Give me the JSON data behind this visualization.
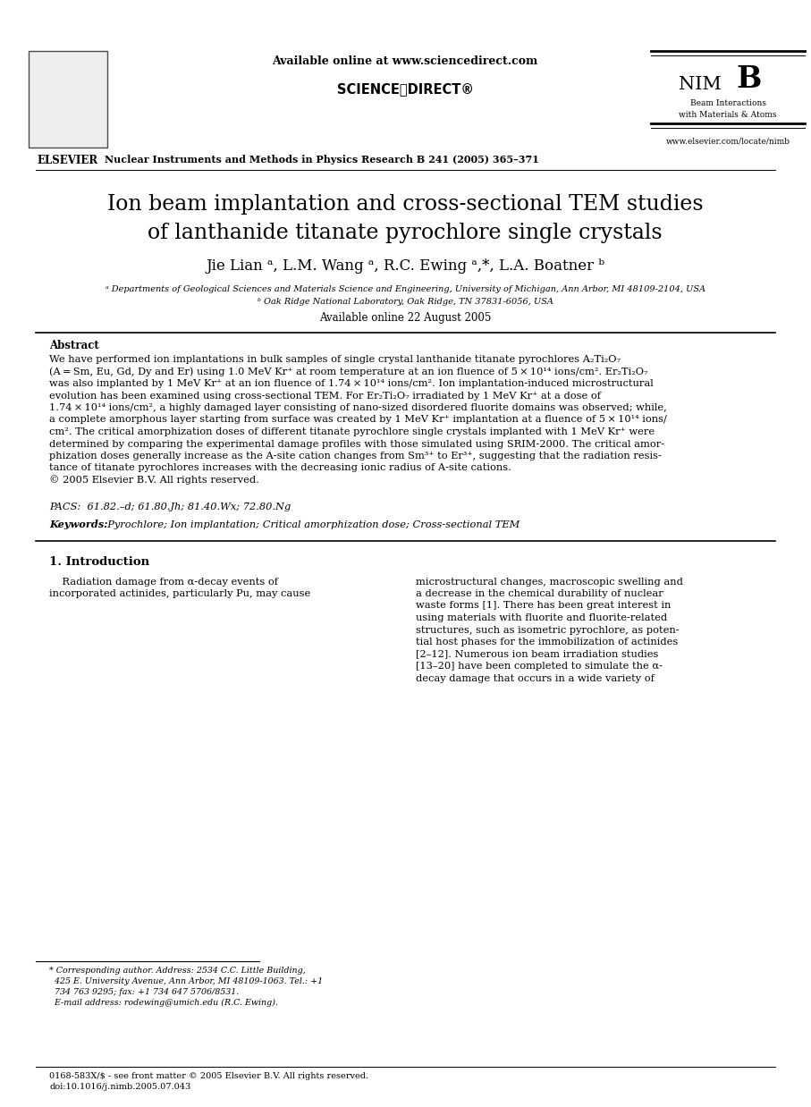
{
  "bg_color": "#ffffff",
  "header_available_online": "Available online at www.sciencedirect.com",
  "journal_name": "Nuclear Instruments and Methods in Physics Research B 241 (2005) 365–371",
  "journal_url": "www.elsevier.com/locate/nimb",
  "nimb_subtitle": "Beam Interactions\nwith Materials & Atoms",
  "title_line1": "Ion beam implantation and cross-sectional TEM studies",
  "title_line2": "of lanthanide titanate pyrochlore single crystals",
  "authors": "Jie Lian ᵃ, L.M. Wang ᵃ, R.C. Ewing ᵃ,*, L.A. Boatner ᵇ",
  "affil_a": "ᵃ Departments of Geological Sciences and Materials Science and Engineering, University of Michigan, Ann Arbor, MI 48109-2104, USA",
  "affil_b": "ᵇ Oak Ridge National Laboratory, Oak Ridge, TN 37831-6056, USA",
  "available_online": "Available online 22 August 2005",
  "abstract_label": "Abstract",
  "pacs": "PACS:  61.82.–d; 61.80.Jh; 81.40.Wx; 72.80.Ng",
  "keywords_label": "Keywords:",
  "keywords_text": "  Pyrochlore; Ion implantation; Critical amorphization dose; Cross-sectional TEM",
  "section1_title": "1. Introduction",
  "footnote_lines": [
    "* Corresponding author. Address: 2534 C.C. Little Building,",
    "425 E. University Avenue, Ann Arbor, MI 48109-1063. Tel.: +1",
    "734 763 9295; fax: +1 734 647 5706/8531.",
    "E-mail address: rodewing@umich.edu (R.C. Ewing)."
  ],
  "footer_line1": "0168-583X/$ - see front matter © 2005 Elsevier B.V. All rights reserved.",
  "footer_line2": "doi:10.1016/j.nimb.2005.07.043",
  "abstract_lines": [
    "We have performed ion implantations in bulk samples of single crystal lanthanide titanate pyrochlores A₂Ti₂O₇",
    "(A = Sm, Eu, Gd, Dy and Er) using 1.0 MeV Kr⁺ at room temperature at an ion fluence of 5 × 10¹⁴ ions/cm². Er₂Ti₂O₇",
    "was also implanted by 1 MeV Kr⁺ at an ion fluence of 1.74 × 10¹⁴ ions/cm². Ion implantation-induced microstructural",
    "evolution has been examined using cross-sectional TEM. For Er₂Ti₂O₇ irradiated by 1 MeV Kr⁺ at a dose of",
    "1.74 × 10¹⁴ ions/cm², a highly damaged layer consisting of nano-sized disordered fluorite domains was observed; while,",
    "a complete amorphous layer starting from surface was created by 1 MeV Kr⁺ implantation at a fluence of 5 × 10¹⁴ ions/",
    "cm². The critical amorphization doses of different titanate pyrochlore single crystals implanted with 1 MeV Kr⁺ were",
    "determined by comparing the experimental damage profiles with those simulated using SRIM-2000. The critical amor-",
    "phization doses generally increase as the A-site cation changes from Sm³⁺ to Er³⁺, suggesting that the radiation resis-",
    "tance of titanate pyrochlores increases with the decreasing ionic radius of A-site cations.",
    "© 2005 Elsevier B.V. All rights reserved."
  ],
  "col1_lines": [
    "    Radiation damage from α-decay events of",
    "incorporated actinides, particularly Pu, may cause"
  ],
  "col2_lines": [
    "microstructural changes, macroscopic swelling and",
    "a decrease in the chemical durability of nuclear",
    "waste forms [1]. There has been great interest in",
    "using materials with fluorite and fluorite-related",
    "structures, such as isometric pyrochlore, as poten-",
    "tial host phases for the immobilization of actinides",
    "[2–12]. Numerous ion beam irradiation studies",
    "[13–20] have been completed to simulate the α-",
    "decay damage that occurs in a wide variety of"
  ]
}
